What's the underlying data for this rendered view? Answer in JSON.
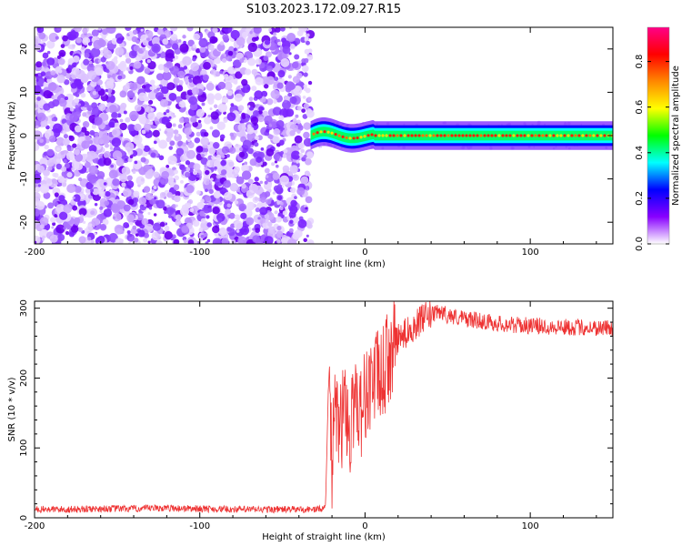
{
  "figure": {
    "title": "S103.2023.172.09.27.R15"
  },
  "chart_data": [
    {
      "type": "heatmap",
      "xlabel": "Height of straight line (km)",
      "ylabel": "Frequency (Hz)",
      "xlim": [
        -200,
        150
      ],
      "ylim": [
        -25,
        25
      ],
      "xticks": [
        -200,
        -100,
        0,
        100
      ],
      "xtick_labels": [
        "-200",
        "-100",
        "0",
        "100"
      ],
      "yticks": [
        -20,
        -10,
        0,
        10,
        20
      ],
      "ytick_labels": [
        "-20",
        "-10",
        "0",
        "10",
        "20"
      ],
      "noise_region_x": [
        -200,
        -33
      ],
      "signal_band": {
        "x_start": -33,
        "x_end": 150,
        "center_frequency_hz": 0,
        "half_width_hz": 1.5,
        "wobble_region_x": [
          -33,
          5
        ]
      },
      "colorbar": {
        "label": "Normalized spectral amplitude",
        "range": [
          0.0,
          0.95
        ],
        "ticks": [
          0.0,
          0.2,
          0.4,
          0.6,
          0.8
        ],
        "tick_labels": [
          "0.0",
          "0.2",
          "0.4",
          "0.6",
          "0.8"
        ],
        "colors": [
          "#ffffff",
          "#8800ff",
          "#0000ff",
          "#00ffff",
          "#00ff00",
          "#ffff00",
          "#ff8800",
          "#ff0000",
          "#ff0088"
        ]
      },
      "grid": false
    },
    {
      "type": "line",
      "xlabel": "Height of straight line (km)",
      "ylabel": "SNR (10 * v/v)",
      "xlim": [
        -200,
        150
      ],
      "ylim": [
        0,
        310
      ],
      "xticks": [
        -200,
        -100,
        0,
        100
      ],
      "xtick_labels": [
        "-200",
        "-100",
        "0",
        "100"
      ],
      "yticks": [
        0,
        100,
        200,
        300
      ],
      "ytick_labels": [
        "0",
        "100",
        "200",
        "300"
      ],
      "color": "#ee3333",
      "grid": false,
      "series": [
        {
          "x": [
            -200,
            -180,
            -160,
            -140,
            -120,
            -100,
            -80,
            -60,
            -40,
            -30,
            -24,
            -22,
            -20,
            -18,
            -15,
            -12,
            -9,
            -6,
            -3,
            0,
            5,
            10,
            15,
            20,
            25,
            30,
            35,
            40,
            46,
            50,
            60,
            70,
            80,
            90,
            100,
            120,
            140,
            150
          ],
          "y": [
            12,
            12,
            13,
            13,
            14,
            13,
            12,
            12,
            12,
            12,
            14,
            200,
            70,
            160,
            120,
            175,
            110,
            190,
            150,
            175,
            200,
            200,
            235,
            255,
            265,
            275,
            285,
            290,
            295,
            290,
            285,
            282,
            278,
            276,
            275,
            273,
            272,
            272
          ]
        }
      ]
    }
  ]
}
